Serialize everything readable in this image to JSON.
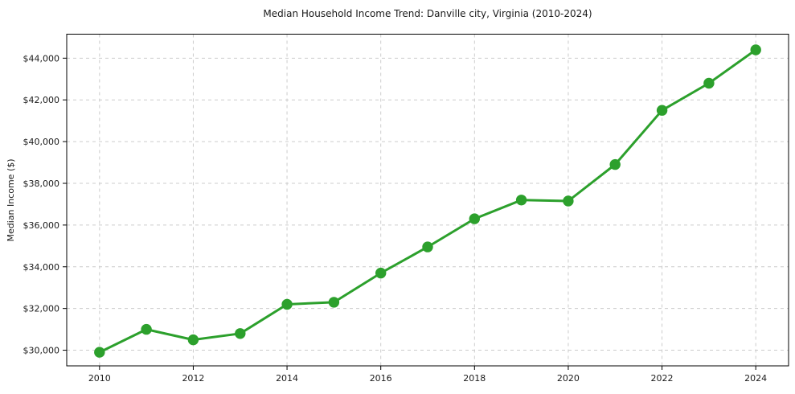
{
  "page": {
    "background": "#ffffff"
  },
  "chart_data": {
    "type": "line",
    "title": "Median Household Income Trend: Danville city, Virginia (2010-2024)",
    "xlabel": "",
    "ylabel": "Median Income ($)",
    "x": [
      2010,
      2011,
      2012,
      2013,
      2014,
      2015,
      2016,
      2017,
      2018,
      2019,
      2020,
      2021,
      2022,
      2023,
      2024
    ],
    "values": [
      29900,
      31000,
      30500,
      30800,
      32200,
      32300,
      33700,
      34950,
      36300,
      37200,
      37150,
      38900,
      41500,
      42800,
      44400
    ],
    "x_tick_values": [
      2010,
      2012,
      2014,
      2016,
      2018,
      2020,
      2022,
      2024
    ],
    "x_tick_labels": [
      "2010",
      "2012",
      "2014",
      "2016",
      "2018",
      "2020",
      "2022",
      "2024"
    ],
    "y_tick_values": [
      30000,
      32000,
      34000,
      36000,
      38000,
      40000,
      42000,
      44000
    ],
    "y_tick_labels": [
      "$30,000",
      "$32,000",
      "$34,000",
      "$36,000",
      "$38,000",
      "$40,000",
      "$42,000",
      "$44,000"
    ],
    "xlim": [
      2009.3,
      2024.7
    ],
    "ylim": [
      29250,
      45150
    ],
    "line_color": "#2ca02c",
    "marker": "circle",
    "grid": {
      "show": true,
      "style": "dashed",
      "color": "#cccccc"
    },
    "axis_color": "#000000",
    "legend": {
      "show": false
    }
  }
}
